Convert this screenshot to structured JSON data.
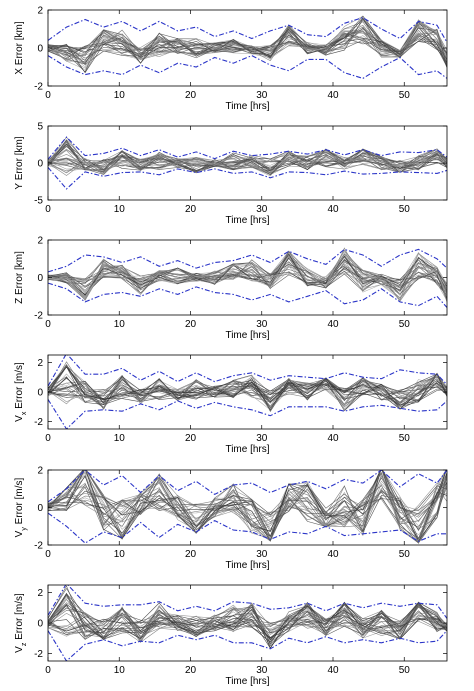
{
  "figure": {
    "x_axis": {
      "label": "Time [hrs]",
      "ticks": [
        0,
        10,
        20,
        30,
        40,
        50
      ],
      "xlim": [
        0,
        56
      ]
    },
    "colors": {
      "samples": "#4d4d4d",
      "bounds": "#2b35c8",
      "axes": "#000000"
    },
    "bound_style": "dash-dot"
  },
  "chart_data": [
    {
      "type": "line",
      "ylabel_main": "X Error [km]",
      "ylabel_sub": "",
      "ylabel_tail": "",
      "ylim": [
        -2,
        2
      ],
      "yticks": [
        -2,
        0,
        2
      ],
      "x": [
        0,
        2.6,
        5.2,
        7.8,
        10.4,
        13,
        15.6,
        18.2,
        20.8,
        23.4,
        26,
        28.6,
        31.2,
        33.8,
        36.4,
        39,
        41.6,
        44.2,
        46.8,
        49.4,
        52,
        54.6,
        56
      ],
      "bound_upper": [
        0.4,
        1.1,
        1.5,
        1.1,
        1.4,
        0.9,
        1.4,
        0.9,
        1.1,
        0.6,
        0.9,
        0.5,
        0.9,
        1.2,
        0.7,
        0.6,
        1.3,
        1.6,
        1.0,
        0.5,
        1.4,
        1.2,
        0.3
      ],
      "bound_lower": [
        -0.4,
        -1.0,
        -1.4,
        -1.2,
        -1.4,
        -0.9,
        -1.3,
        -0.8,
        -1.0,
        -0.5,
        -0.8,
        -0.4,
        -0.9,
        -1.2,
        -0.6,
        -0.6,
        -1.3,
        -1.6,
        -1.0,
        -0.5,
        -1.4,
        -1.2,
        -1.6
      ],
      "mean": [
        0.0,
        -0.2,
        -0.6,
        0.4,
        0.3,
        -0.4,
        0.2,
        0.1,
        0.0,
        0.0,
        0.1,
        -0.1,
        -0.3,
        0.7,
        0.0,
        -0.1,
        0.5,
        1.0,
        0.0,
        -0.3,
        1.0,
        0.5,
        -0.6
      ],
      "spread": 0.45
    },
    {
      "type": "line",
      "ylabel_main": "Y Error [km]",
      "ylabel_sub": "",
      "ylabel_tail": "",
      "ylim": [
        -5,
        5
      ],
      "yticks": [
        -5,
        0,
        5
      ],
      "x": [
        0,
        2.6,
        5.2,
        7.8,
        10.4,
        13,
        15.6,
        18.2,
        20.8,
        23.4,
        26,
        28.6,
        31.2,
        33.8,
        36.4,
        39,
        41.6,
        44.2,
        46.8,
        49.4,
        52,
        54.6,
        56
      ],
      "bound_upper": [
        0.5,
        3.5,
        1.0,
        1.3,
        2.0,
        1.0,
        1.8,
        0.8,
        1.5,
        0.6,
        1.6,
        1.0,
        1.2,
        1.6,
        1.2,
        1.8,
        1.1,
        1.8,
        1.0,
        1.5,
        1.4,
        1.8,
        0.8
      ],
      "bound_lower": [
        -0.6,
        -3.5,
        -1.2,
        -1.8,
        -1.3,
        -1.2,
        -1.6,
        -0.8,
        -1.3,
        -0.8,
        -1.4,
        -1.2,
        -2.0,
        -1.2,
        -1.3,
        -1.6,
        -1.1,
        -1.5,
        -1.4,
        -1.2,
        -1.3,
        -1.4,
        -1.0
      ],
      "mean": [
        0.0,
        1.0,
        -0.2,
        -0.4,
        0.5,
        -0.2,
        0.4,
        0.0,
        -0.3,
        0.0,
        0.2,
        0.2,
        -0.6,
        0.6,
        0.0,
        0.8,
        0.0,
        1.0,
        0.0,
        -0.6,
        0.0,
        1.1,
        0.0
      ],
      "spread": 0.7
    },
    {
      "type": "line",
      "ylabel_main": "Z Error [km]",
      "ylabel_sub": "",
      "ylabel_tail": "",
      "ylim": [
        -2,
        2
      ],
      "yticks": [
        -2,
        0,
        2
      ],
      "x": [
        0,
        2.6,
        5.2,
        7.8,
        10.4,
        13,
        15.6,
        18.2,
        20.8,
        23.4,
        26,
        28.6,
        31.2,
        33.8,
        36.4,
        39,
        41.6,
        44.2,
        46.8,
        49.4,
        52,
        54.6,
        56
      ],
      "bound_upper": [
        0.3,
        0.6,
        1.2,
        1.1,
        0.8,
        1.1,
        0.6,
        0.9,
        0.5,
        0.8,
        0.9,
        1.2,
        0.8,
        1.4,
        1.0,
        0.7,
        1.5,
        1.2,
        0.6,
        1.2,
        1.5,
        1.0,
        0.5
      ],
      "bound_lower": [
        -0.3,
        -0.6,
        -1.3,
        -0.9,
        -0.8,
        -1.0,
        -0.6,
        -0.9,
        -0.5,
        -0.8,
        -0.9,
        -1.2,
        -0.9,
        -1.3,
        -1.0,
        -0.7,
        -1.4,
        -1.2,
        -0.6,
        -1.3,
        -1.5,
        -1.0,
        -1.6
      ],
      "mean": [
        0.0,
        0.0,
        -0.6,
        0.5,
        0.3,
        -0.4,
        0.1,
        0.1,
        0.0,
        0.0,
        0.3,
        0.4,
        -0.2,
        0.8,
        0.0,
        -0.3,
        0.9,
        -0.2,
        -0.1,
        -0.7,
        0.6,
        0.1,
        -0.8
      ],
      "spread": 0.45
    },
    {
      "type": "line",
      "ylabel_main": "V",
      "ylabel_sub": "x",
      "ylabel_tail": " Error [m/s]",
      "ylim": [
        -2.5,
        2.5
      ],
      "yticks": [
        -2,
        0,
        2
      ],
      "x": [
        0,
        2.6,
        5.2,
        7.8,
        10.4,
        13,
        15.6,
        18.2,
        20.8,
        23.4,
        26,
        28.6,
        31.2,
        33.8,
        36.4,
        39,
        41.6,
        44.2,
        46.8,
        49.4,
        52,
        54.6,
        56
      ],
      "bound_upper": [
        0.4,
        2.6,
        1.2,
        1.2,
        1.6,
        0.8,
        1.4,
        0.7,
        1.3,
        0.7,
        1.1,
        1.3,
        0.8,
        1.1,
        1.0,
        0.9,
        1.3,
        1.0,
        0.9,
        1.5,
        1.3,
        1.2,
        0.5
      ],
      "bound_lower": [
        -0.5,
        -2.5,
        -1.3,
        -1.2,
        -1.3,
        -0.8,
        -1.2,
        -0.6,
        -1.1,
        -0.7,
        -1.0,
        -1.2,
        -1.6,
        -1.0,
        -1.0,
        -1.0,
        -1.3,
        -1.0,
        -0.9,
        -1.1,
        -1.3,
        -1.2,
        -0.6
      ],
      "mean": [
        0.0,
        0.6,
        0.0,
        -0.5,
        0.3,
        -0.3,
        0.2,
        -0.2,
        0.2,
        0.0,
        0.2,
        0.4,
        -0.6,
        0.3,
        0.0,
        0.7,
        -0.5,
        0.4,
        0.0,
        -0.6,
        0.1,
        0.8,
        0.0
      ],
      "spread": 0.55
    },
    {
      "type": "line",
      "ylabel_main": "V",
      "ylabel_sub": "y",
      "ylabel_tail": " Error [m/s]",
      "ylim": [
        -2,
        2
      ],
      "yticks": [
        -2,
        0,
        2
      ],
      "x": [
        0,
        2.6,
        5.2,
        7.8,
        10.4,
        13,
        15.6,
        18.2,
        20.8,
        23.4,
        26,
        28.6,
        31.2,
        33.8,
        36.4,
        39,
        41.6,
        44.2,
        46.8,
        49.4,
        52,
        54.6,
        56
      ],
      "bound_upper": [
        0.3,
        1.0,
        2.0,
        1.2,
        1.7,
        0.8,
        1.7,
        0.9,
        1.4,
        0.7,
        1.2,
        1.3,
        0.8,
        1.2,
        1.4,
        1.0,
        1.5,
        1.3,
        2.0,
        1.1,
        1.8,
        1.3,
        2.0
      ],
      "bound_lower": [
        -0.3,
        -1.0,
        -1.9,
        -1.3,
        -1.6,
        -0.8,
        -1.6,
        -0.9,
        -1.3,
        -0.7,
        -1.2,
        -1.3,
        -1.7,
        -1.3,
        -1.4,
        -1.0,
        -1.5,
        -1.4,
        -1.3,
        -1.2,
        -1.8,
        -1.4,
        -1.4
      ],
      "mean": [
        0.0,
        0.5,
        1.5,
        -0.3,
        -0.7,
        0.2,
        0.9,
        0.0,
        -0.8,
        0.0,
        0.6,
        -0.5,
        -1.0,
        0.7,
        0.3,
        -0.8,
        0.0,
        -0.6,
        1.6,
        -0.3,
        -1.2,
        0.4,
        1.6
      ],
      "spread": 0.7
    },
    {
      "type": "line",
      "ylabel_main": "V",
      "ylabel_sub": "z",
      "ylabel_tail": " Error [m/s]",
      "ylim": [
        -2.5,
        2.5
      ],
      "yticks": [
        -2,
        0,
        2
      ],
      "x": [
        0,
        2.6,
        5.2,
        7.8,
        10.4,
        13,
        15.6,
        18.2,
        20.8,
        23.4,
        26,
        28.6,
        31.2,
        33.8,
        36.4,
        39,
        41.6,
        44.2,
        46.8,
        49.4,
        52,
        54.6,
        56
      ],
      "bound_upper": [
        0.5,
        2.6,
        1.3,
        1.1,
        1.2,
        1.2,
        1.4,
        0.8,
        1.1,
        0.8,
        1.4,
        1.3,
        0.9,
        1.0,
        1.3,
        0.8,
        1.3,
        1.0,
        1.3,
        1.1,
        1.3,
        1.2,
        0.3
      ],
      "bound_lower": [
        -0.5,
        -2.5,
        -1.4,
        -1.1,
        -1.5,
        -1.2,
        -1.3,
        -0.8,
        -1.1,
        -0.8,
        -1.3,
        -1.3,
        -1.7,
        -1.0,
        -1.3,
        -0.9,
        -1.3,
        -1.1,
        -1.3,
        -1.0,
        -1.3,
        -1.2,
        -0.5
      ],
      "mean": [
        0.0,
        0.8,
        -0.2,
        -0.4,
        0.2,
        -0.6,
        0.5,
        0.0,
        -0.2,
        0.0,
        0.3,
        0.5,
        -0.8,
        0.1,
        0.5,
        -0.3,
        0.6,
        -0.3,
        0.0,
        -0.5,
        0.8,
        0.0,
        -0.3
      ],
      "spread": 0.6
    }
  ]
}
